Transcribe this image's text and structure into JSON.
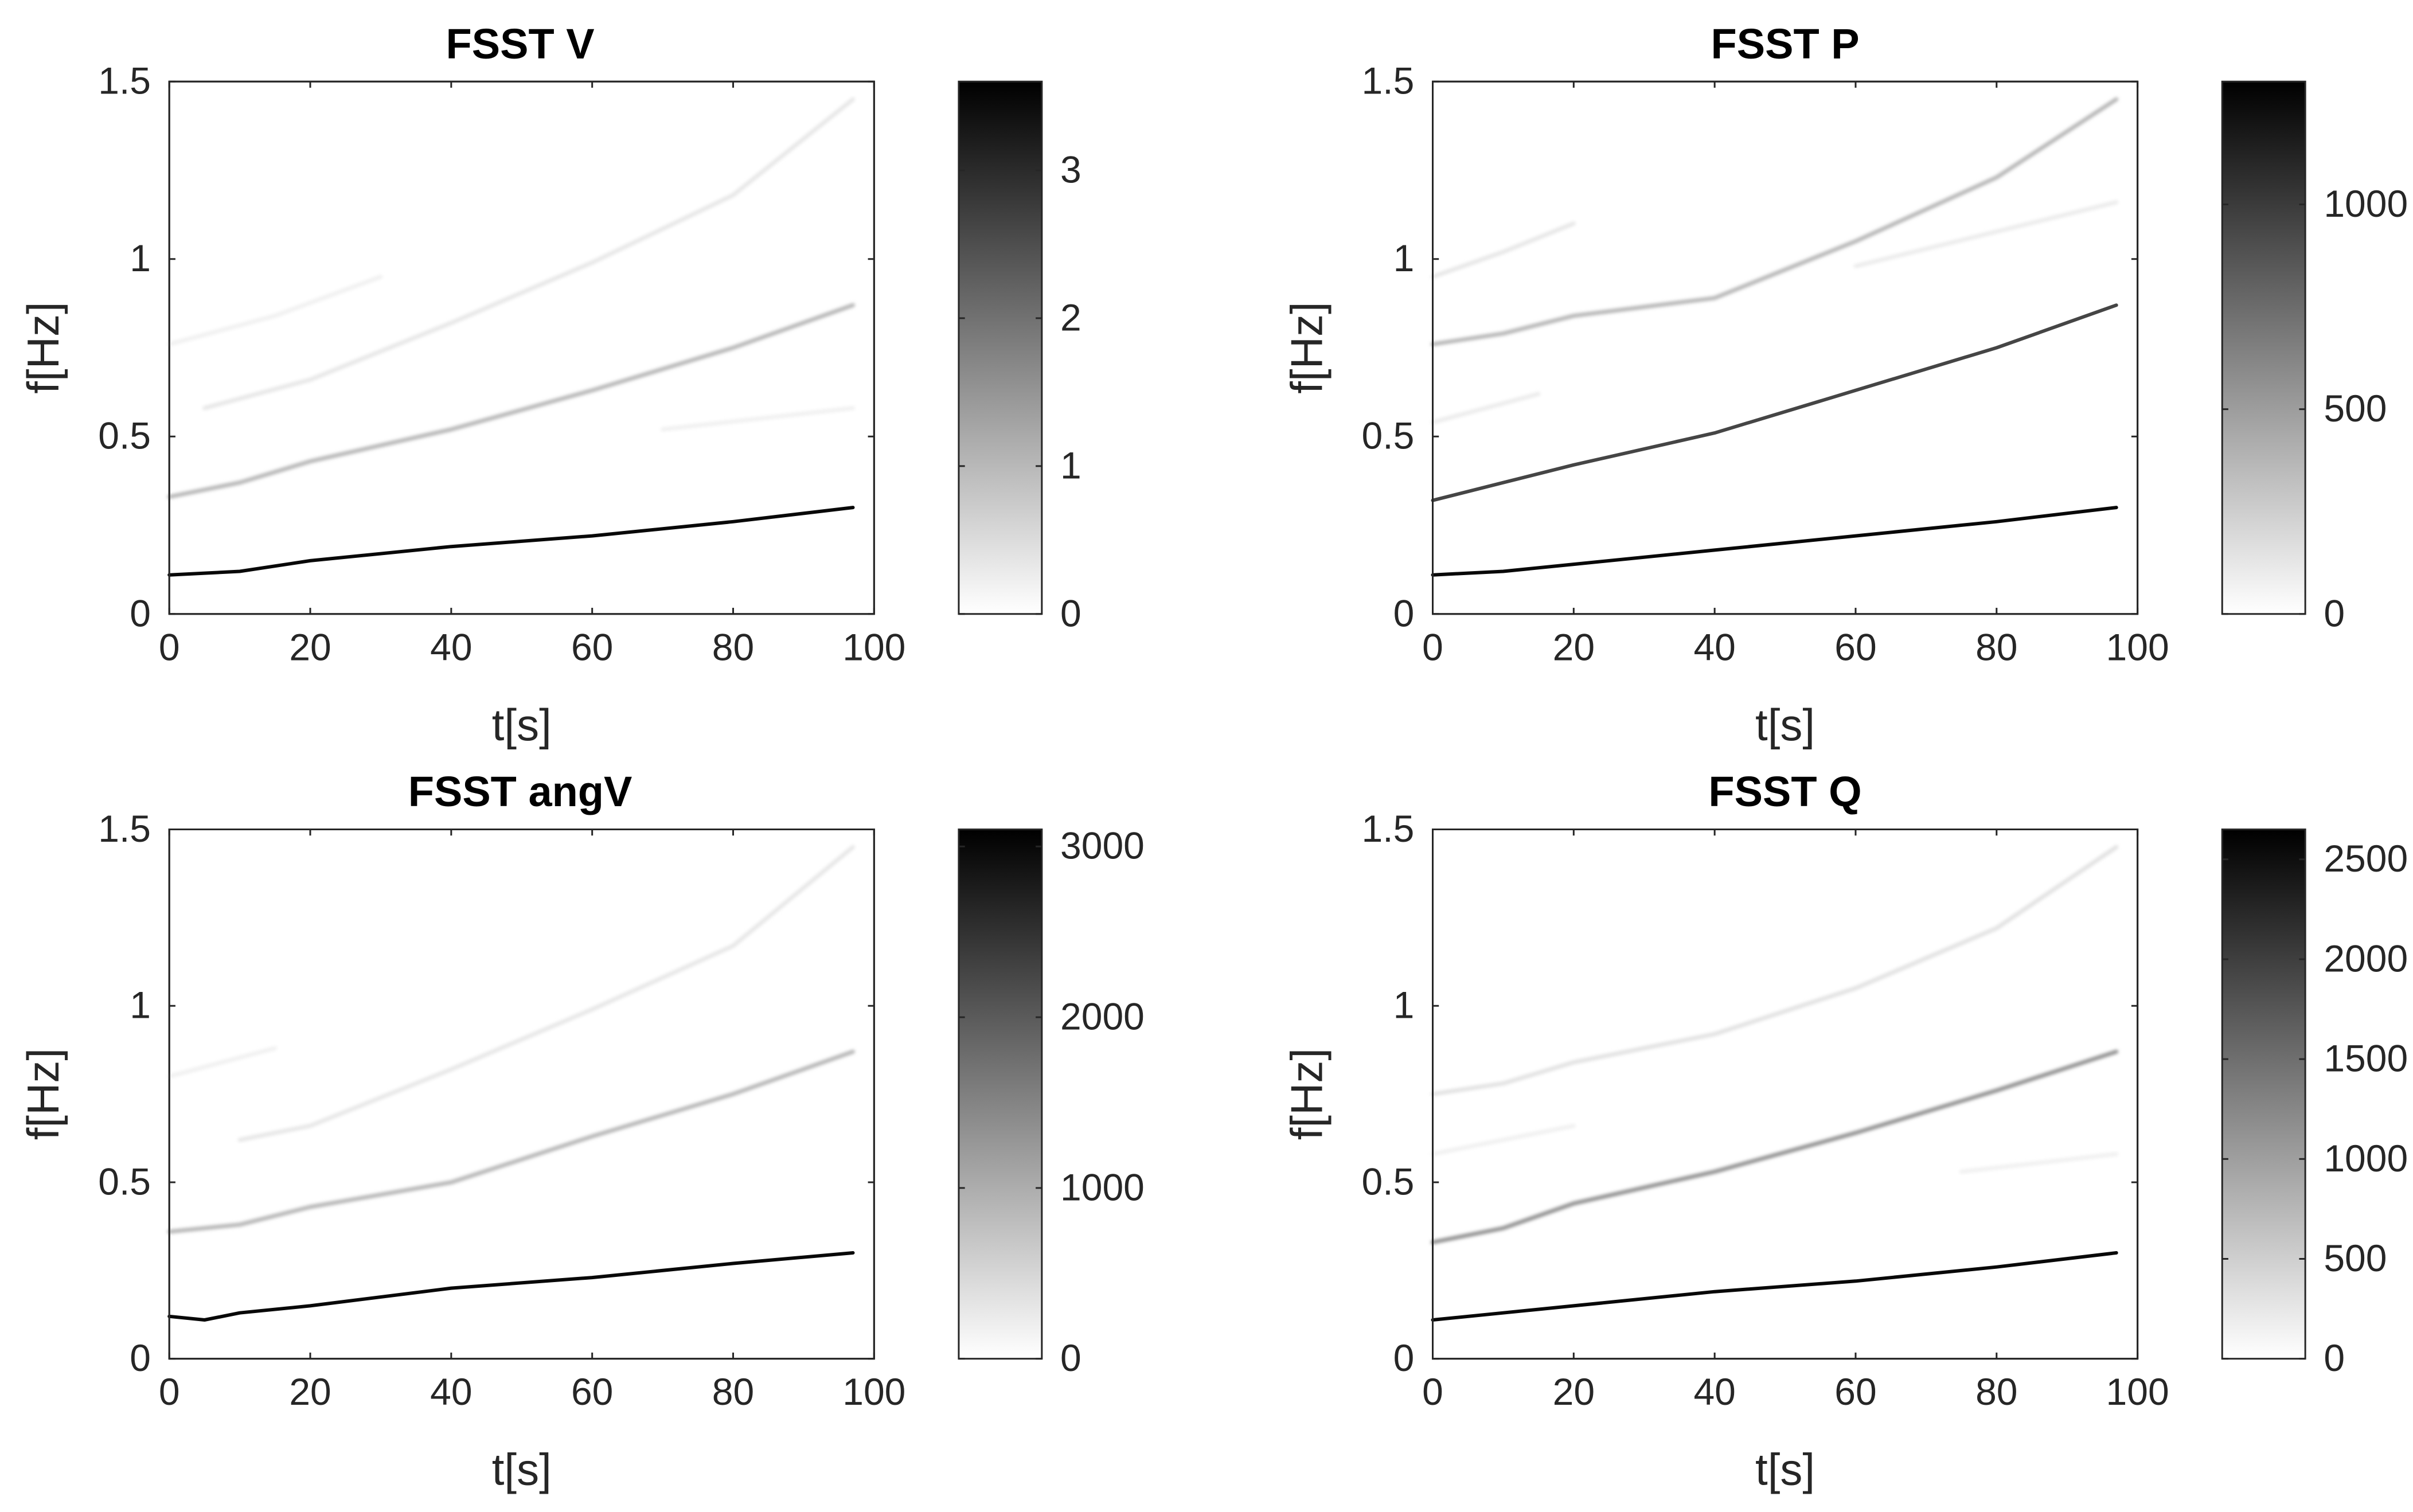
{
  "chart_data": [
    {
      "type": "heatmap",
      "title": "FSST V",
      "xlabel": "t[s]",
      "ylabel": "f[Hz]",
      "xlim": [
        0,
        100
      ],
      "ylim": [
        0,
        1.5
      ],
      "xticks": [
        "0",
        "20",
        "40",
        "60",
        "80",
        "100"
      ],
      "yticks": [
        "0",
        "0.5",
        "1",
        "1.5"
      ],
      "colormap": "gray-reversed",
      "colorbar": {
        "range": [
          0,
          3.6
        ],
        "ticks": [
          0,
          1,
          2,
          3
        ],
        "tick_labels": [
          "0",
          "1",
          "2",
          "3"
        ]
      },
      "ridges": [
        {
          "name": "fundamental",
          "t": [
            0,
            10,
            20,
            40,
            60,
            80,
            97
          ],
          "f": [
            0.11,
            0.12,
            0.15,
            0.19,
            0.22,
            0.26,
            0.3
          ],
          "intensity": 1.0
        },
        {
          "name": "harmonic-2",
          "t": [
            0,
            10,
            20,
            40,
            60,
            80,
            97
          ],
          "f": [
            0.33,
            0.37,
            0.43,
            0.52,
            0.63,
            0.75,
            0.87
          ],
          "intensity": 0.3
        },
        {
          "name": "harmonic-3",
          "t": [
            5,
            20,
            40,
            60,
            80,
            97
          ],
          "f": [
            0.58,
            0.66,
            0.82,
            0.99,
            1.18,
            1.45
          ],
          "intensity": 0.1
        },
        {
          "name": "weak-0.76",
          "t": [
            0,
            15,
            30
          ],
          "f": [
            0.76,
            0.84,
            0.95
          ],
          "intensity": 0.06
        },
        {
          "name": "weak-0.6",
          "t": [
            70,
            97
          ],
          "f": [
            0.52,
            0.58
          ],
          "intensity": 0.06
        }
      ]
    },
    {
      "type": "heatmap",
      "title": "FSST P",
      "xlabel": "t[s]",
      "ylabel": "f[Hz]",
      "xlim": [
        0,
        100
      ],
      "ylim": [
        0,
        1.5
      ],
      "xticks": [
        "0",
        "20",
        "40",
        "60",
        "80",
        "100"
      ],
      "yticks": [
        "0",
        "0.5",
        "1",
        "1.5"
      ],
      "colormap": "gray-reversed",
      "colorbar": {
        "range": [
          0,
          1300
        ],
        "ticks": [
          0,
          500,
          1000
        ],
        "tick_labels": [
          "0",
          "500",
          "1000"
        ]
      },
      "ridges": [
        {
          "name": "fundamental",
          "t": [
            0,
            10,
            20,
            40,
            60,
            80,
            97
          ],
          "f": [
            0.11,
            0.12,
            0.14,
            0.18,
            0.22,
            0.26,
            0.3
          ],
          "intensity": 1.0
        },
        {
          "name": "harmonic-2",
          "t": [
            0,
            10,
            20,
            40,
            60,
            80,
            97
          ],
          "f": [
            0.32,
            0.37,
            0.42,
            0.51,
            0.63,
            0.75,
            0.87
          ],
          "intensity": 0.75
        },
        {
          "name": "harmonic-3",
          "t": [
            0,
            10,
            20,
            40,
            60,
            80,
            97
          ],
          "f": [
            0.76,
            0.79,
            0.84,
            0.89,
            1.05,
            1.23,
            1.45
          ],
          "intensity": 0.3
        },
        {
          "name": "weak-0.95",
          "t": [
            0,
            10,
            20
          ],
          "f": [
            0.95,
            1.02,
            1.1
          ],
          "intensity": 0.1
        },
        {
          "name": "weak-0.55",
          "t": [
            0,
            15
          ],
          "f": [
            0.54,
            0.62
          ],
          "intensity": 0.08
        },
        {
          "name": "weak-1.0",
          "t": [
            60,
            97
          ],
          "f": [
            0.98,
            1.16
          ],
          "intensity": 0.08
        }
      ]
    },
    {
      "type": "heatmap",
      "title": "FSST angV",
      "xlabel": "t[s]",
      "ylabel": "f[Hz]",
      "xlim": [
        0,
        100
      ],
      "ylim": [
        0,
        1.5
      ],
      "xticks": [
        "0",
        "20",
        "40",
        "60",
        "80",
        "100"
      ],
      "yticks": [
        "0",
        "0.5",
        "1",
        "1.5"
      ],
      "colormap": "gray-reversed",
      "colorbar": {
        "range": [
          0,
          3100
        ],
        "ticks": [
          0,
          1000,
          2000,
          3000
        ],
        "tick_labels": [
          "0",
          "1000",
          "2000",
          "3000"
        ]
      },
      "ridges": [
        {
          "name": "fundamental",
          "t": [
            0,
            5,
            10,
            20,
            40,
            60,
            80,
            97
          ],
          "f": [
            0.12,
            0.11,
            0.13,
            0.15,
            0.2,
            0.23,
            0.27,
            0.3
          ],
          "intensity": 1.0
        },
        {
          "name": "harmonic-2",
          "t": [
            0,
            10,
            20,
            40,
            60,
            80,
            97
          ],
          "f": [
            0.36,
            0.38,
            0.43,
            0.5,
            0.63,
            0.75,
            0.87
          ],
          "intensity": 0.3
        },
        {
          "name": "harmonic-3",
          "t": [
            10,
            20,
            40,
            60,
            80,
            97
          ],
          "f": [
            0.62,
            0.66,
            0.82,
            0.99,
            1.17,
            1.45
          ],
          "intensity": 0.1
        },
        {
          "name": "weak-0.8",
          "t": [
            0,
            15
          ],
          "f": [
            0.8,
            0.88
          ],
          "intensity": 0.06
        }
      ]
    },
    {
      "type": "heatmap",
      "title": "FSST Q",
      "xlabel": "t[s]",
      "ylabel": "f[Hz]",
      "xlim": [
        0,
        100
      ],
      "ylim": [
        0,
        1.5
      ],
      "xticks": [
        "0",
        "20",
        "40",
        "60",
        "80",
        "100"
      ],
      "yticks": [
        "0",
        "0.5",
        "1",
        "1.5"
      ],
      "colormap": "gray-reversed",
      "colorbar": {
        "range": [
          0,
          2650
        ],
        "ticks": [
          0,
          500,
          1000,
          1500,
          2000,
          2500
        ],
        "tick_labels": [
          "0",
          "500",
          "1000",
          "1500",
          "2000",
          "2500"
        ]
      },
      "ridges": [
        {
          "name": "fundamental",
          "t": [
            0,
            10,
            20,
            40,
            60,
            80,
            97
          ],
          "f": [
            0.11,
            0.13,
            0.15,
            0.19,
            0.22,
            0.26,
            0.3
          ],
          "intensity": 1.0
        },
        {
          "name": "harmonic-2",
          "t": [
            0,
            10,
            20,
            40,
            60,
            80,
            97
          ],
          "f": [
            0.33,
            0.37,
            0.44,
            0.53,
            0.64,
            0.76,
            0.87
          ],
          "intensity": 0.45
        },
        {
          "name": "harmonic-3",
          "t": [
            0,
            10,
            20,
            40,
            60,
            80,
            97
          ],
          "f": [
            0.75,
            0.78,
            0.84,
            0.92,
            1.05,
            1.22,
            1.45
          ],
          "intensity": 0.12
        },
        {
          "name": "weak-0.6",
          "t": [
            0,
            20
          ],
          "f": [
            0.58,
            0.66
          ],
          "intensity": 0.06
        },
        {
          "name": "weak-0.55",
          "t": [
            75,
            97
          ],
          "f": [
            0.53,
            0.58
          ],
          "intensity": 0.06
        }
      ]
    }
  ]
}
